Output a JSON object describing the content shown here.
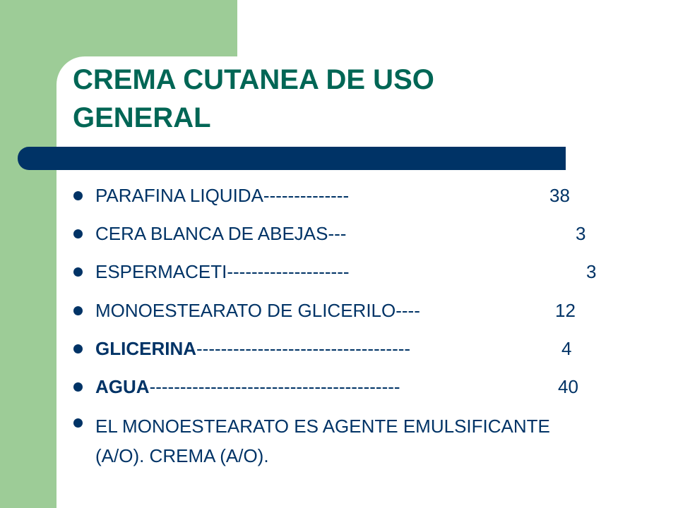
{
  "title": "CREMA CUTANEA DE USO GENERAL",
  "items": [
    {
      "name": "PARAFINA LIQUIDA--------------",
      "amount": 38,
      "bold": false
    },
    {
      "name": "CERA BLANCA DE ABEJAS---",
      "amount": 3,
      "bold": false
    },
    {
      "name": "ESPERMACETI--------------------",
      "amount": 3,
      "bold": false
    },
    {
      "name": "MONOESTEARATO DE GLICERILO----",
      "amount": 12,
      "bold": false
    },
    {
      "name": "GLICERINA",
      "leader": "-----------------------------------",
      "amount": 4,
      "bold": true
    },
    {
      "name": "AGUA",
      "leader": "-----------------------------------------",
      "amount": 40,
      "bold": true
    }
  ],
  "note": "EL MONOESTEARATO ES AGENTE EMULSIFICANTE (A/O). CREMA  (A/O)."
}
